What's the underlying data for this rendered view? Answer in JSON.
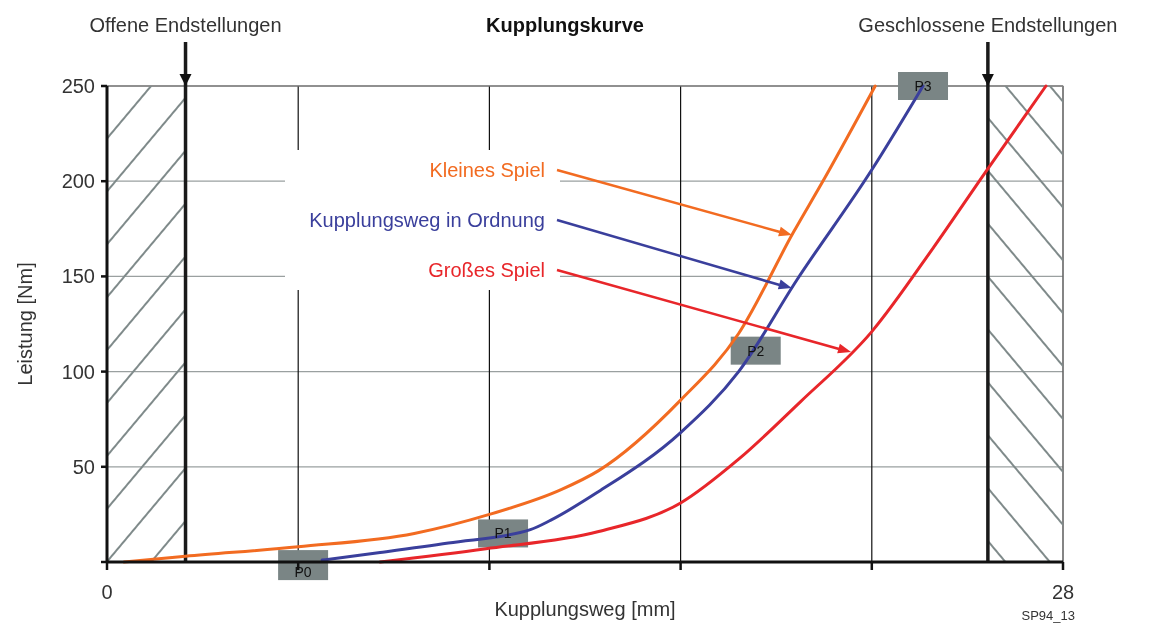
{
  "chart_data": {
    "type": "line",
    "title": "Kupplungskurve",
    "xlabel": "Kupplungsweg [mm]",
    "ylabel": "Leistung [Nm]",
    "xlim": [
      0,
      28
    ],
    "xticks": [
      0,
      {
        "value": 5.6,
        "label": null
      },
      {
        "value": 11.2,
        "label": null
      },
      {
        "value": 16.8,
        "label": null
      },
      {
        "value": 22.4,
        "label": null
      },
      28
    ],
    "ylim": [
      0,
      250
    ],
    "yticks": [
      {
        "value": 0,
        "label": null
      },
      50,
      100,
      150,
      200,
      250
    ],
    "grid": true,
    "series": [
      {
        "name": "Kleines Spiel",
        "color": "#f26b21",
        "x": [
          0.5,
          2.3,
          5.6,
          9,
          11.2,
          13.3,
          14.4,
          16.8,
          18.5,
          20.1,
          21,
          22.5
        ],
        "values": [
          0,
          3,
          8,
          15,
          25,
          38,
          48,
          85,
          120,
          173,
          201,
          250
        ]
      },
      {
        "name": "Kupplungsweg in Ordnung",
        "color": "#3a3f9c",
        "x": [
          6.3,
          8,
          10,
          12.4,
          13,
          14.4,
          16.8,
          18.5,
          20.2,
          22.4,
          23.7,
          23.9
        ],
        "values": [
          1,
          5,
          10,
          17,
          22,
          37,
          68,
          100,
          148,
          206,
          244,
          250
        ]
      },
      {
        "name": "Großes Spiel",
        "color": "#e8262a",
        "x": [
          8,
          11.1,
          14.4,
          16.8,
          18.5,
          20.3,
          22.4,
          24.2,
          25.7,
          27.5
        ],
        "values": [
          0,
          7,
          16,
          31,
          54,
          84,
          121,
          165,
          204,
          250
        ]
      }
    ],
    "bands": [
      {
        "axis": "x",
        "from": 0,
        "to": 2.3,
        "color": "#7f8a8a"
      },
      {
        "axis": "x",
        "from": 25.8,
        "to": 28,
        "color": "#7f8a8a"
      }
    ],
    "ref_lines": [
      {
        "axis": "x",
        "value": 2.3,
        "label": "Offene Endstellungen",
        "color": "#1a1a1a"
      },
      {
        "axis": "x",
        "value": 25.8,
        "label": "Geschlossene Endstellungen",
        "color": "#1a1a1a"
      }
    ],
    "annotations": [
      {
        "text": "P0",
        "x": 6.3,
        "y": 1
      },
      {
        "text": "P1",
        "x": 11.6,
        "y": 15
      },
      {
        "text": "P2",
        "x": 19,
        "y": 111
      },
      {
        "text": "P3",
        "x": 23.9,
        "y": 250
      },
      "SP94_13"
    ]
  }
}
